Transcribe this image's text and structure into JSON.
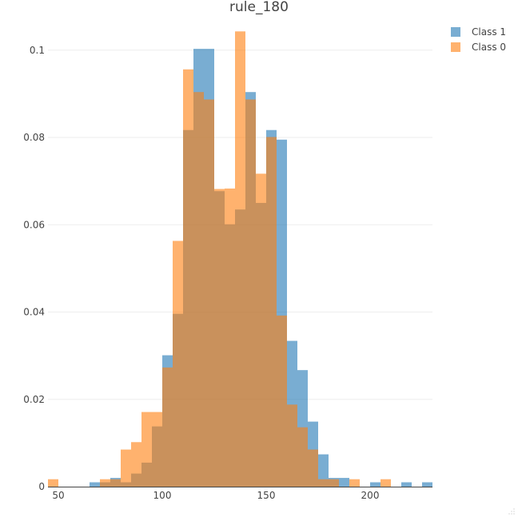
{
  "chart_data": {
    "type": "bar",
    "title": "rule_180",
    "xlabel": "",
    "ylabel": "",
    "barmode": "overlay",
    "bin_size": 5,
    "xlim": [
      45,
      230
    ],
    "ylim": [
      0,
      0.106
    ],
    "x_ticks": [
      50,
      100,
      150,
      200
    ],
    "y_ticks": [
      0,
      0.02,
      0.04,
      0.06,
      0.08,
      0.1
    ],
    "y_tick_labels": [
      "0",
      "0.02",
      "0.04",
      "0.06",
      "0.08",
      "0.1"
    ],
    "x_tick_labels": [
      "50",
      "100",
      "150",
      "200"
    ],
    "grid": true,
    "legend_position": "top-right",
    "series": [
      {
        "name": "Class 1",
        "color": "#1f77b4",
        "opacity": 0.6,
        "bins": [
          {
            "x0": 65,
            "x1": 70,
            "value": 0.001
          },
          {
            "x0": 70,
            "x1": 75,
            "value": 0.001
          },
          {
            "x0": 75,
            "x1": 80,
            "value": 0.002
          },
          {
            "x0": 80,
            "x1": 85,
            "value": 0.001
          },
          {
            "x0": 85,
            "x1": 90,
            "value": 0.003
          },
          {
            "x0": 90,
            "x1": 95,
            "value": 0.0055
          },
          {
            "x0": 95,
            "x1": 100,
            "value": 0.0138
          },
          {
            "x0": 100,
            "x1": 105,
            "value": 0.0301
          },
          {
            "x0": 105,
            "x1": 110,
            "value": 0.0396
          },
          {
            "x0": 110,
            "x1": 115,
            "value": 0.0817
          },
          {
            "x0": 115,
            "x1": 120,
            "value": 0.1003
          },
          {
            "x0": 120,
            "x1": 125,
            "value": 0.1003
          },
          {
            "x0": 125,
            "x1": 130,
            "value": 0.0677
          },
          {
            "x0": 130,
            "x1": 135,
            "value": 0.0601
          },
          {
            "x0": 135,
            "x1": 140,
            "value": 0.0635
          },
          {
            "x0": 140,
            "x1": 145,
            "value": 0.0904
          },
          {
            "x0": 145,
            "x1": 150,
            "value": 0.065
          },
          {
            "x0": 150,
            "x1": 155,
            "value": 0.0817
          },
          {
            "x0": 155,
            "x1": 160,
            "value": 0.0795
          },
          {
            "x0": 160,
            "x1": 165,
            "value": 0.0334
          },
          {
            "x0": 165,
            "x1": 170,
            "value": 0.0267
          },
          {
            "x0": 170,
            "x1": 175,
            "value": 0.0149
          },
          {
            "x0": 175,
            "x1": 180,
            "value": 0.0074
          },
          {
            "x0": 180,
            "x1": 185,
            "value": 0.002
          },
          {
            "x0": 185,
            "x1": 190,
            "value": 0.002
          },
          {
            "x0": 200,
            "x1": 205,
            "value": 0.001
          },
          {
            "x0": 215,
            "x1": 220,
            "value": 0.001
          },
          {
            "x0": 225,
            "x1": 230,
            "value": 0.001
          }
        ]
      },
      {
        "name": "Class 0",
        "color": "#ff7f0e",
        "opacity": 0.6,
        "bins": [
          {
            "x0": 45,
            "x1": 50,
            "value": 0.0017
          },
          {
            "x0": 70,
            "x1": 75,
            "value": 0.0017
          },
          {
            "x0": 75,
            "x1": 80,
            "value": 0.0017
          },
          {
            "x0": 80,
            "x1": 85,
            "value": 0.0085
          },
          {
            "x0": 85,
            "x1": 90,
            "value": 0.0102
          },
          {
            "x0": 90,
            "x1": 95,
            "value": 0.0171
          },
          {
            "x0": 95,
            "x1": 100,
            "value": 0.0171
          },
          {
            "x0": 100,
            "x1": 105,
            "value": 0.0273
          },
          {
            "x0": 105,
            "x1": 110,
            "value": 0.0563
          },
          {
            "x0": 110,
            "x1": 115,
            "value": 0.0956
          },
          {
            "x0": 115,
            "x1": 120,
            "value": 0.0904
          },
          {
            "x0": 120,
            "x1": 125,
            "value": 0.0887
          },
          {
            "x0": 125,
            "x1": 130,
            "value": 0.0682
          },
          {
            "x0": 130,
            "x1": 135,
            "value": 0.0683
          },
          {
            "x0": 135,
            "x1": 140,
            "value": 0.1043
          },
          {
            "x0": 140,
            "x1": 145,
            "value": 0.0887
          },
          {
            "x0": 145,
            "x1": 150,
            "value": 0.0717
          },
          {
            "x0": 150,
            "x1": 155,
            "value": 0.0801
          },
          {
            "x0": 155,
            "x1": 160,
            "value": 0.0392
          },
          {
            "x0": 160,
            "x1": 165,
            "value": 0.0188
          },
          {
            "x0": 165,
            "x1": 170,
            "value": 0.0136
          },
          {
            "x0": 170,
            "x1": 175,
            "value": 0.0085
          },
          {
            "x0": 175,
            "x1": 180,
            "value": 0.0017
          },
          {
            "x0": 180,
            "x1": 185,
            "value": 0.0017
          },
          {
            "x0": 190,
            "x1": 195,
            "value": 0.0017
          },
          {
            "x0": 205,
            "x1": 210,
            "value": 0.0017
          }
        ]
      }
    ]
  }
}
